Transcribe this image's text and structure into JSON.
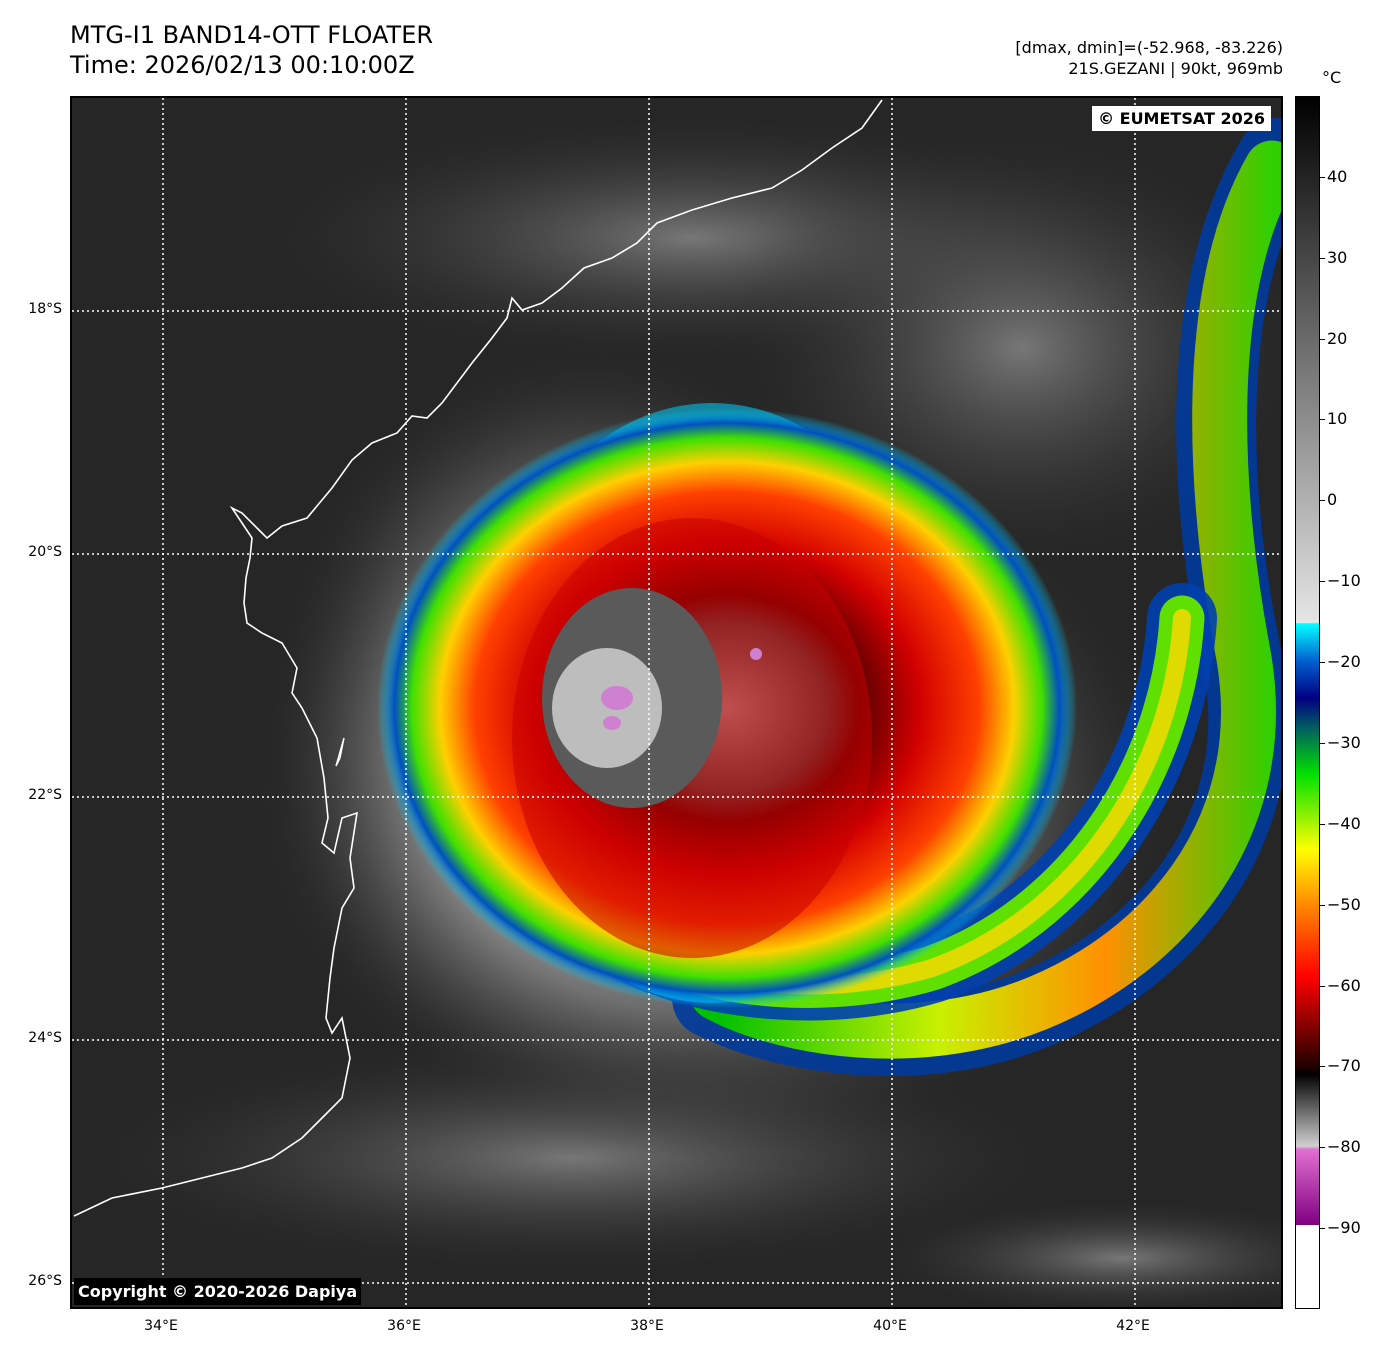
{
  "header": {
    "title_line1": "MTG-I1 BAND14-OTT FLOATER",
    "title_line2": "Time: 2026/02/13 00:10:00Z",
    "info_line1": "[dmax, dmin]=(-52.968, -83.226)",
    "info_line2": "21S.GEZANI | 90kt, 969mb"
  },
  "map": {
    "credit_top_right": "© EUMETSAT 2026",
    "credit_bottom_left": "Copyright © 2020-2026 Dapiya",
    "lat_labels": [
      "18°S",
      "20°S",
      "22°S",
      "24°S",
      "26°S"
    ],
    "lon_labels": [
      "34°E",
      "36°E",
      "38°E",
      "40°E",
      "42°E"
    ],
    "land_color": "#262626",
    "coastline_color": "#ffffff",
    "grid_color": "#ffffff"
  },
  "colorbar": {
    "unit": "°C",
    "ticks": [
      "40",
      "30",
      "20",
      "10",
      "0",
      "−10",
      "−20",
      "−30",
      "−40",
      "−50",
      "−60",
      "−70",
      "−80",
      "−90"
    ],
    "tick_values": [
      40,
      30,
      20,
      10,
      0,
      -10,
      -20,
      -30,
      -40,
      -50,
      -60,
      -70,
      -80,
      -90
    ],
    "range": [
      50,
      -100
    ]
  }
}
